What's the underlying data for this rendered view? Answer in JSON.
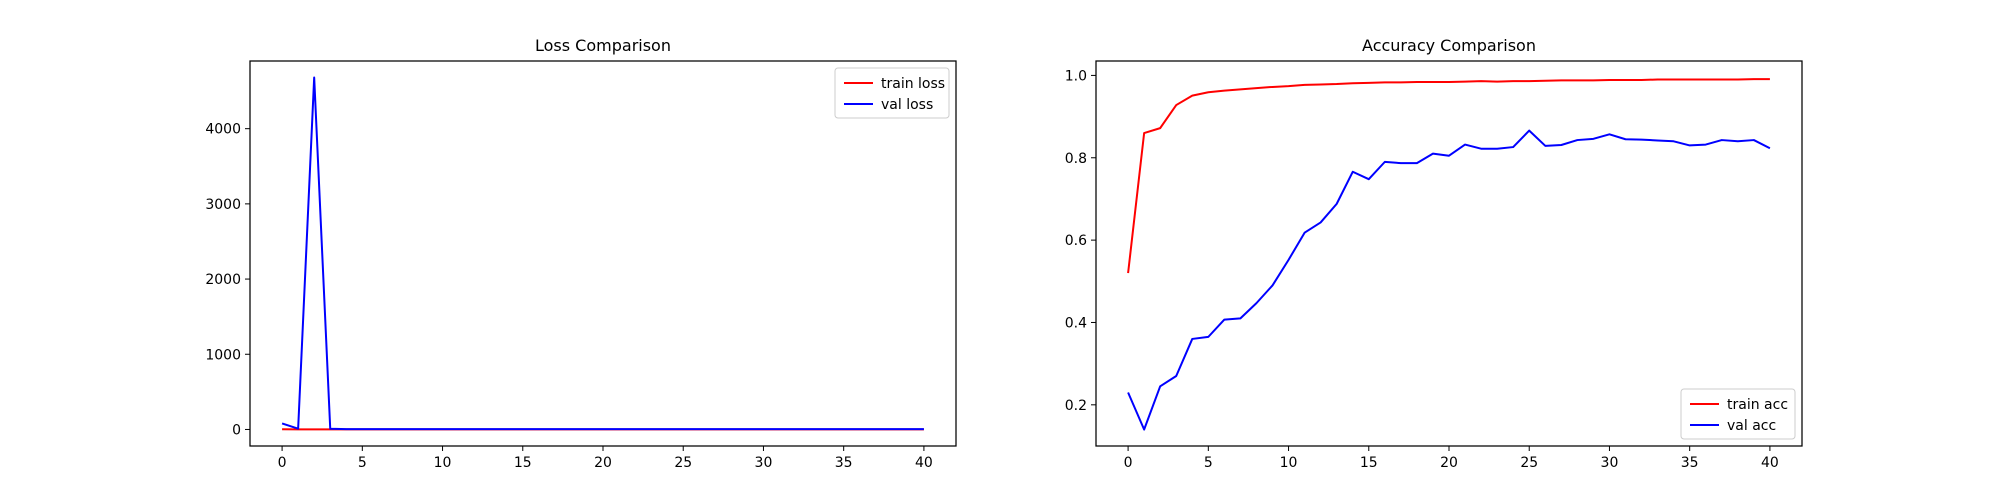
{
  "chart_data": [
    {
      "type": "line",
      "title": "Loss Comparison",
      "xlabel": "",
      "ylabel": "",
      "xlim": [
        -2,
        42
      ],
      "ylim": [
        -220,
        4900
      ],
      "xticks": [
        0,
        5,
        10,
        15,
        20,
        25,
        30,
        35,
        40
      ],
      "yticks": [
        0,
        1000,
        2000,
        3000,
        4000
      ],
      "legend_position": "top-right",
      "grid": false,
      "x": [
        0,
        1,
        2,
        3,
        4,
        5,
        6,
        7,
        8,
        9,
        10,
        11,
        12,
        13,
        14,
        15,
        16,
        17,
        18,
        19,
        20,
        21,
        22,
        23,
        24,
        25,
        26,
        27,
        28,
        29,
        30,
        31,
        32,
        33,
        34,
        35,
        36,
        37,
        38,
        39,
        40
      ],
      "series": [
        {
          "name": "train loss",
          "color": "#ff0000",
          "values": [
            3,
            1,
            1,
            1,
            1,
            1,
            1,
            1,
            1,
            1,
            1,
            1,
            1,
            1,
            1,
            1,
            1,
            1,
            1,
            1,
            1,
            1,
            1,
            1,
            1,
            1,
            1,
            1,
            1,
            1,
            1,
            1,
            1,
            1,
            1,
            1,
            1,
            1,
            1,
            1,
            1
          ]
        },
        {
          "name": "val loss",
          "color": "#0000ff",
          "values": [
            80,
            10,
            4680,
            10,
            5,
            5,
            5,
            5,
            5,
            5,
            5,
            5,
            5,
            5,
            5,
            5,
            5,
            5,
            5,
            5,
            5,
            5,
            5,
            5,
            5,
            5,
            5,
            5,
            5,
            5,
            5,
            5,
            5,
            5,
            5,
            5,
            5,
            5,
            5,
            5,
            5
          ]
        }
      ]
    },
    {
      "type": "line",
      "title": "Accuracy Comparison",
      "xlabel": "",
      "ylabel": "",
      "xlim": [
        -2,
        42
      ],
      "ylim": [
        0.1,
        1.035
      ],
      "xticks": [
        0,
        5,
        10,
        15,
        20,
        25,
        30,
        35,
        40
      ],
      "yticks": [
        0.2,
        0.4,
        0.6,
        0.8,
        1.0
      ],
      "ytick_labels": [
        "0.2",
        "0.4",
        "0.6",
        "0.8",
        "1.0"
      ],
      "legend_position": "bottom-right",
      "grid": false,
      "x": [
        0,
        1,
        2,
        3,
        4,
        5,
        6,
        7,
        8,
        9,
        10,
        11,
        12,
        13,
        14,
        15,
        16,
        17,
        18,
        19,
        20,
        21,
        22,
        23,
        24,
        25,
        26,
        27,
        28,
        29,
        30,
        31,
        32,
        33,
        34,
        35,
        36,
        37,
        38,
        39,
        40
      ],
      "series": [
        {
          "name": "train acc",
          "color": "#ff0000",
          "values": [
            0.52,
            0.86,
            0.872,
            0.928,
            0.951,
            0.959,
            0.963,
            0.966,
            0.969,
            0.972,
            0.974,
            0.977,
            0.978,
            0.979,
            0.981,
            0.982,
            0.983,
            0.983,
            0.984,
            0.984,
            0.984,
            0.985,
            0.986,
            0.985,
            0.986,
            0.986,
            0.987,
            0.988,
            0.988,
            0.988,
            0.989,
            0.989,
            0.989,
            0.99,
            0.99,
            0.99,
            0.99,
            0.99,
            0.99,
            0.991,
            0.991
          ]
        },
        {
          "name": "val acc",
          "color": "#0000ff",
          "values": [
            0.23,
            0.14,
            0.245,
            0.27,
            0.36,
            0.365,
            0.407,
            0.41,
            0.447,
            0.49,
            0.552,
            0.618,
            0.643,
            0.688,
            0.766,
            0.748,
            0.79,
            0.787,
            0.787,
            0.81,
            0.805,
            0.832,
            0.822,
            0.822,
            0.826,
            0.866,
            0.829,
            0.831,
            0.843,
            0.846,
            0.857,
            0.845,
            0.844,
            0.842,
            0.84,
            0.83,
            0.832,
            0.843,
            0.84,
            0.843,
            0.823
          ]
        }
      ]
    }
  ]
}
